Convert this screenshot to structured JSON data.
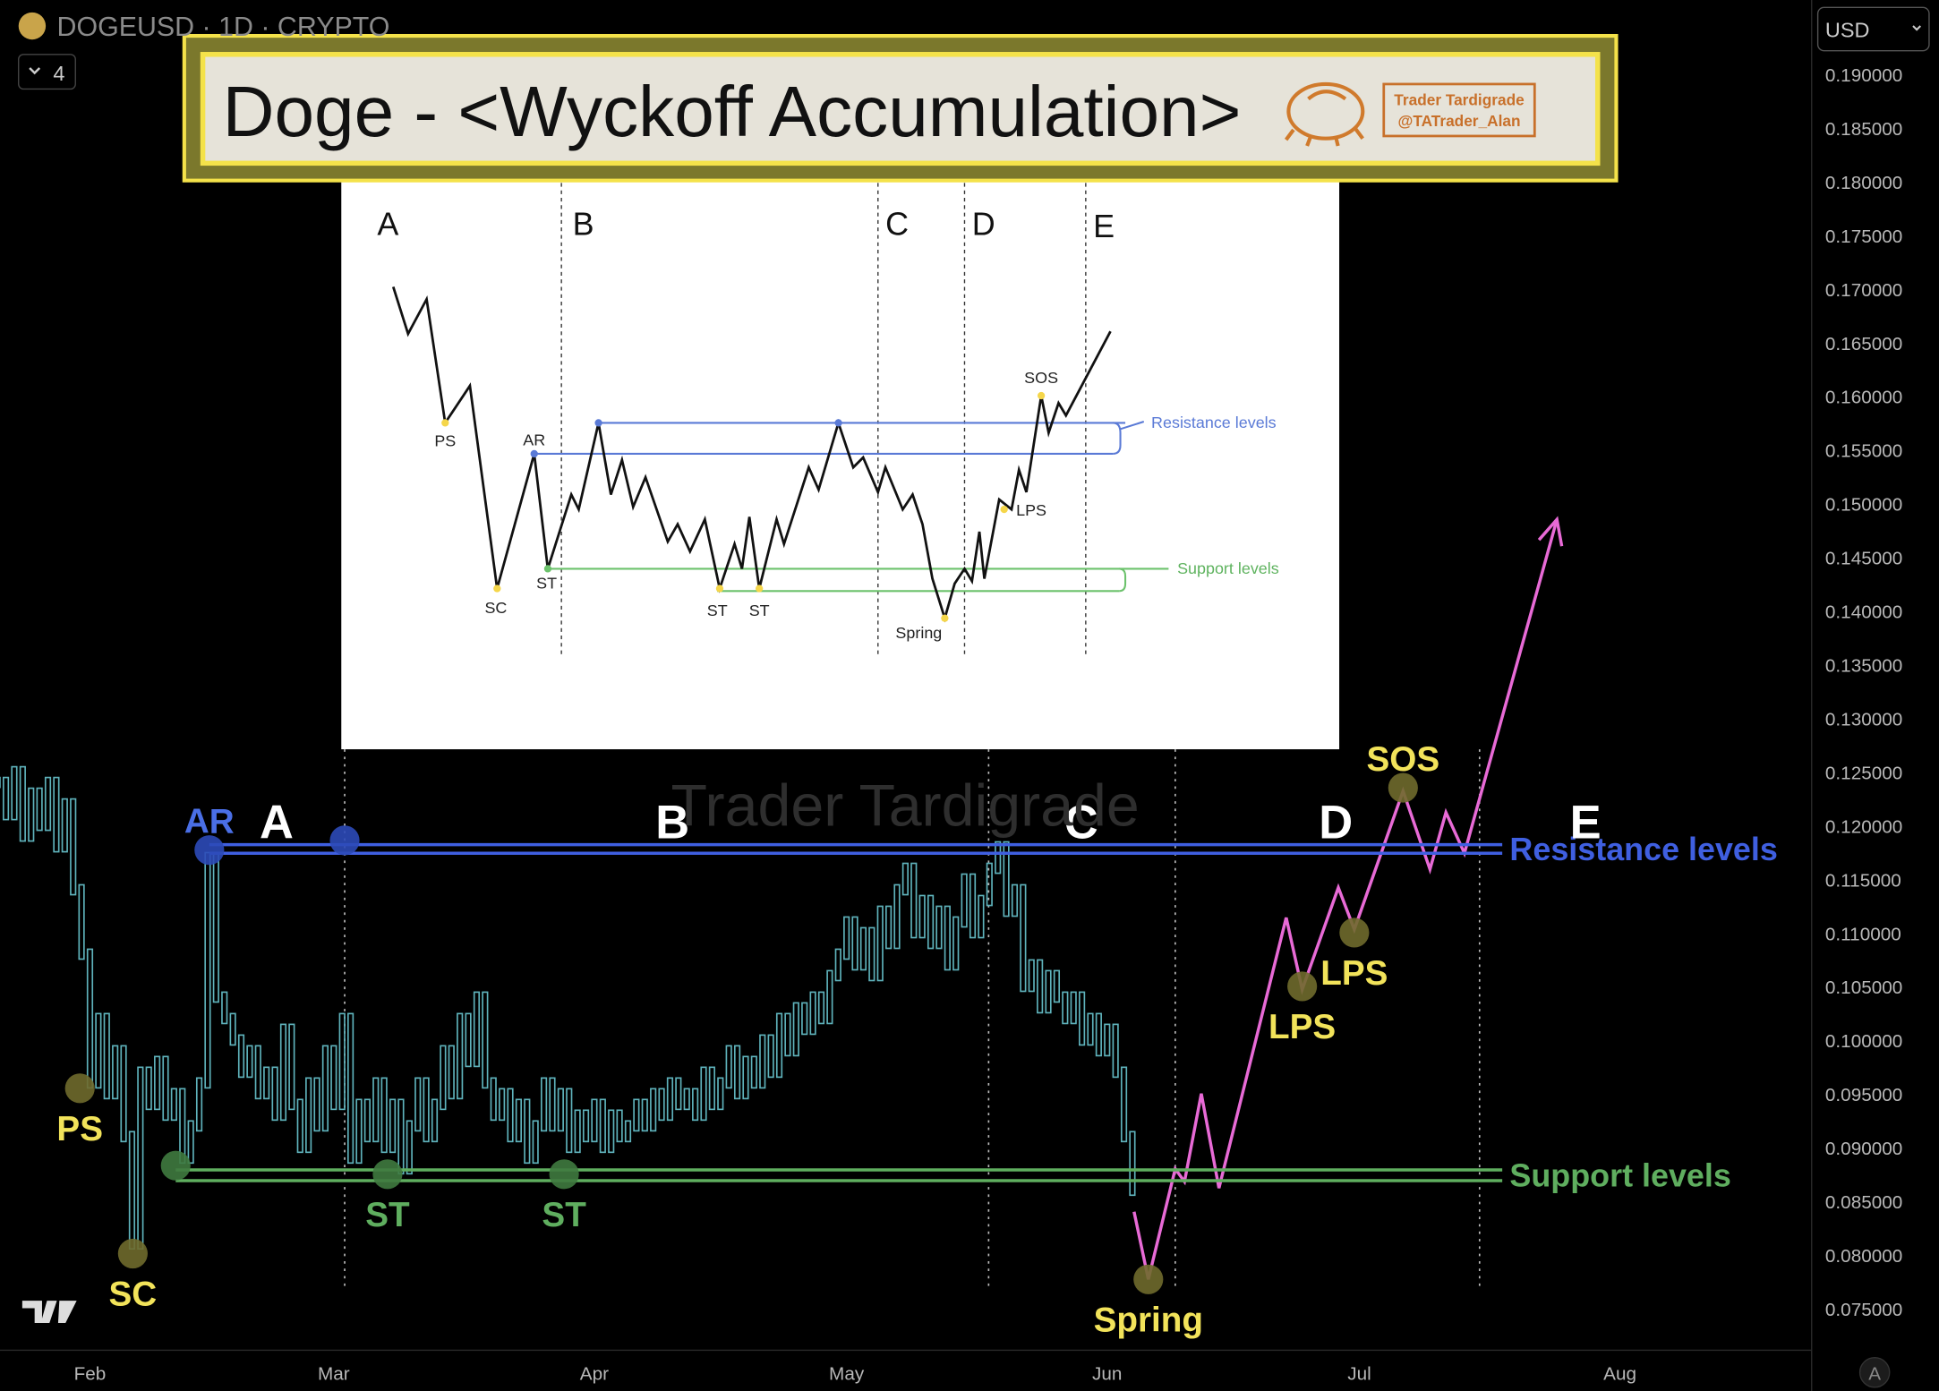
{
  "chart_data": {
    "type": "candles",
    "symbol": "DOGEUSD · 1D · CRYPTO",
    "indicator_count": "4",
    "currency": "USD",
    "watermark": "Trader Tardigrade",
    "title": "Doge - <Wyckoff Accumulation>",
    "author": "Trader Tardigrade",
    "handle": "@TATrader_Alan",
    "scale_button": "A",
    "xlim": [
      21.3,
      236.8
    ],
    "xticks": [
      {
        "value": 32,
        "label": "Feb"
      },
      {
        "value": 61,
        "label": "Mar"
      },
      {
        "value": 92,
        "label": "Apr"
      },
      {
        "value": 122,
        "label": "May"
      },
      {
        "value": 153,
        "label": "Jun"
      },
      {
        "value": 183,
        "label": "Jul"
      },
      {
        "value": 214,
        "label": "Aug"
      }
    ],
    "ylim": [
      0.0711,
      0.1969
    ],
    "yticks": [
      {
        "value": 0.19,
        "label": "0.190000"
      },
      {
        "value": 0.185,
        "label": "0.185000"
      },
      {
        "value": 0.18,
        "label": "0.180000"
      },
      {
        "value": 0.175,
        "label": "0.175000"
      },
      {
        "value": 0.17,
        "label": "0.170000"
      },
      {
        "value": 0.165,
        "label": "0.165000"
      },
      {
        "value": 0.16,
        "label": "0.160000"
      },
      {
        "value": 0.155,
        "label": "0.155000"
      },
      {
        "value": 0.15,
        "label": "0.150000"
      },
      {
        "value": 0.145,
        "label": "0.145000"
      },
      {
        "value": 0.14,
        "label": "0.140000"
      },
      {
        "value": 0.135,
        "label": "0.135000"
      },
      {
        "value": 0.13,
        "label": "0.130000"
      },
      {
        "value": 0.125,
        "label": "0.125000"
      },
      {
        "value": 0.12,
        "label": "0.120000"
      },
      {
        "value": 0.115,
        "label": "0.115000"
      },
      {
        "value": 0.11,
        "label": "0.110000"
      },
      {
        "value": 0.105,
        "label": "0.105000"
      },
      {
        "value": 0.1,
        "label": "0.100000"
      },
      {
        "value": 0.095,
        "label": "0.095000"
      },
      {
        "value": 0.09,
        "label": "0.090000"
      },
      {
        "value": 0.085,
        "label": "0.085000"
      },
      {
        "value": 0.08,
        "label": "0.080000"
      },
      {
        "value": 0.075,
        "label": "0.075000"
      }
    ],
    "grid": false,
    "series": [
      {
        "color": "#5fb3bc",
        "x": [
          21,
          22,
          23,
          24,
          25,
          26,
          27,
          28,
          29,
          30,
          31,
          32,
          33,
          34,
          35,
          36,
          37,
          38,
          39,
          40,
          41,
          42,
          43,
          44,
          45,
          46,
          47,
          48,
          49,
          50,
          51,
          52,
          53,
          54,
          55,
          56,
          57,
          58,
          59,
          60,
          61,
          62,
          63,
          64,
          65,
          66,
          67,
          68,
          69,
          70,
          71,
          72,
          73,
          74,
          75,
          76,
          77,
          78,
          79,
          80,
          81,
          82,
          83,
          84,
          85,
          86,
          87,
          88,
          89,
          90,
          91,
          92,
          93,
          94,
          95,
          96,
          97,
          98,
          99,
          100,
          101,
          102,
          103,
          104,
          105,
          106,
          107,
          108,
          109,
          110,
          111,
          112,
          113,
          114,
          115,
          116,
          117,
          118,
          119,
          120,
          121,
          122,
          123,
          124,
          125,
          126,
          127,
          128,
          129,
          130,
          131,
          132,
          133,
          134,
          135,
          136,
          137,
          138,
          139,
          140,
          141,
          142,
          143,
          144,
          145,
          146,
          147,
          148,
          149,
          150,
          151,
          152,
          153,
          154,
          155,
          156
        ],
        "values": [
          0.124,
          0.121,
          0.125,
          0.119,
          0.123,
          0.12,
          0.124,
          0.118,
          0.122,
          0.114,
          0.108,
          0.096,
          0.102,
          0.095,
          0.099,
          0.091,
          0.081,
          0.097,
          0.094,
          0.098,
          0.093,
          0.095,
          0.089,
          0.092,
          0.096,
          0.117,
          0.104,
          0.102,
          0.1,
          0.097,
          0.099,
          0.095,
          0.097,
          0.093,
          0.101,
          0.094,
          0.09,
          0.096,
          0.092,
          0.099,
          0.094,
          0.102,
          0.089,
          0.094,
          0.091,
          0.096,
          0.09,
          0.094,
          0.088,
          0.092,
          0.096,
          0.091,
          0.094,
          0.099,
          0.095,
          0.102,
          0.098,
          0.104,
          0.096,
          0.093,
          0.095,
          0.091,
          0.094,
          0.089,
          0.092,
          0.096,
          0.092,
          0.095,
          0.09,
          0.093,
          0.091,
          0.094,
          0.09,
          0.093,
          0.091,
          0.092,
          0.094,
          0.092,
          0.095,
          0.093,
          0.096,
          0.094,
          0.095,
          0.093,
          0.097,
          0.094,
          0.096,
          0.099,
          0.095,
          0.098,
          0.096,
          0.1,
          0.097,
          0.102,
          0.099,
          0.103,
          0.101,
          0.104,
          0.102,
          0.106,
          0.108,
          0.111,
          0.107,
          0.11,
          0.106,
          0.112,
          0.109,
          0.114,
          0.116,
          0.11,
          0.113,
          0.109,
          0.112,
          0.107,
          0.111,
          0.115,
          0.11,
          0.113,
          0.116,
          0.118,
          0.112,
          0.114,
          0.105,
          0.107,
          0.103,
          0.106,
          0.104,
          0.102,
          0.104,
          0.1,
          0.102,
          0.099,
          0.101,
          0.097,
          0.091,
          0.086
        ]
      },
      {
        "type": "line",
        "color": "#e86ad6",
        "x": [
          156.2,
          157.9,
          161.1,
          162.2,
          164.2,
          166.3,
          174.3,
          176.2,
          180.5,
          182.4,
          188.2,
          191.4,
          193.3,
          195.5,
          206.5
        ],
        "values": [
          0.084,
          0.0777,
          0.088,
          0.0868,
          0.095,
          0.0862,
          0.1114,
          0.1047,
          0.1142,
          0.1103,
          0.1232,
          0.1159,
          0.1212,
          0.1174,
          0.1485
        ]
      }
    ],
    "levels": [
      {
        "name": "Resistance levels",
        "color": "#3f5fe0",
        "x": [
          46.2,
          200
        ],
        "values": [
          0.1182,
          0.1174
        ]
      },
      {
        "name": "Support levels",
        "color": "#5fae5f",
        "x": [
          42.2,
          200
        ],
        "values": [
          0.0879,
          0.0869
        ]
      }
    ],
    "phase_boundaries": [
      62.3,
      138.9,
      161.1,
      197.3
    ],
    "phases": [
      {
        "label": "A",
        "x": 54.2
      },
      {
        "label": "B",
        "x": 101.3
      },
      {
        "label": "C",
        "x": 149.9
      },
      {
        "label": "D",
        "x": 180.2
      },
      {
        "label": "E",
        "x": 209.9
      }
    ],
    "annotations": [
      {
        "label": "AR",
        "x": 46.2,
        "y": 0.1177,
        "color": "#4a6fe6",
        "marker": "#2c4ab8",
        "label_pos": "above"
      },
      {
        "label": null,
        "x": 62.3,
        "y": 0.1186,
        "color": "#4a6fe6",
        "marker": "#2c4ab8",
        "label_pos": "above"
      },
      {
        "label": "PS",
        "x": 30.8,
        "y": 0.0955,
        "color": "#f2e35a",
        "marker": "#6f6a2c",
        "label_pos": "below"
      },
      {
        "label": "SC",
        "x": 37.1,
        "y": 0.0801,
        "color": "#f2e35a",
        "marker": "#6f6a2c",
        "label_pos": "below"
      },
      {
        "label": null,
        "x": 42.2,
        "y": 0.0883,
        "color": "#5fae5f",
        "marker": "#3f7a3f",
        "label_pos": "below"
      },
      {
        "label": "ST",
        "x": 67.4,
        "y": 0.0875,
        "color": "#5fae5f",
        "marker": "#3f7a3f",
        "label_pos": "below"
      },
      {
        "label": "ST",
        "x": 88.4,
        "y": 0.0875,
        "color": "#5fae5f",
        "marker": "#3f7a3f",
        "label_pos": "below"
      },
      {
        "label": "Spring",
        "x": 157.9,
        "y": 0.0777,
        "color": "#f2e35a",
        "marker": "#6f6a2c",
        "label_pos": "below"
      },
      {
        "label": "LPS",
        "x": 176.2,
        "y": 0.105,
        "color": "#f2e35a",
        "marker": "#6f6a2c",
        "label_pos": "below"
      },
      {
        "label": "LPS",
        "x": 182.4,
        "y": 0.11,
        "color": "#f2e35a",
        "marker": "#6f6a2c",
        "label_pos": "below"
      },
      {
        "label": "SOS",
        "x": 188.2,
        "y": 0.1235,
        "color": "#f2e35a",
        "marker": "#6f6a2c",
        "label_pos": "above"
      }
    ],
    "inset": {
      "phases": [
        "A",
        "B",
        "C",
        "D",
        "E"
      ],
      "points": [
        "PS",
        "AR",
        "SC",
        "ST",
        "ST",
        "ST",
        "Spring",
        "SOS",
        "LPS"
      ],
      "resistance": "Resistance levels",
      "support": "Support levels"
    }
  }
}
